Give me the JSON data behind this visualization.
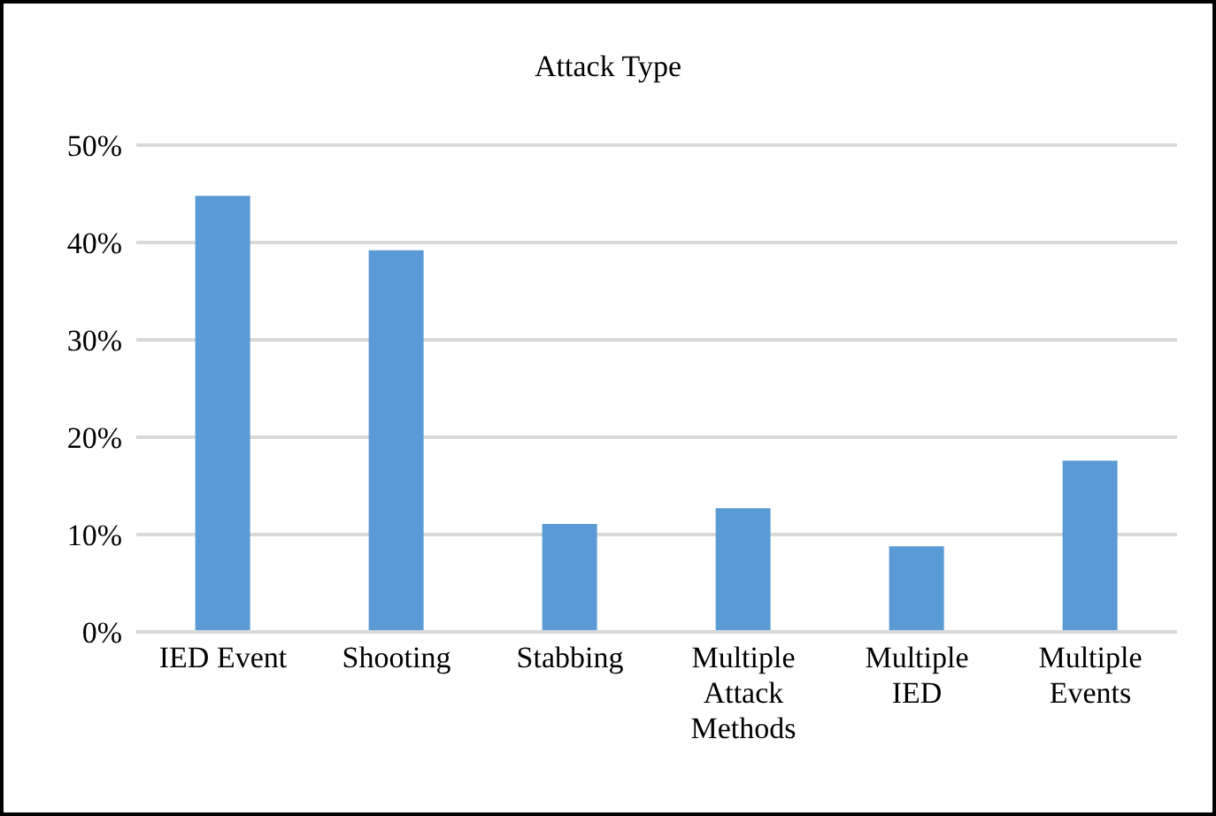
{
  "chart_data": {
    "type": "bar",
    "title": "Attack Type",
    "categories": [
      "IED Event",
      "Shooting",
      "Stabbing",
      "Multiple Attack Methods",
      "Multiple IED",
      "Multiple Events"
    ],
    "values": [
      44.8,
      39.2,
      11.1,
      12.7,
      8.8,
      17.6
    ],
    "color": "#5b9bd5",
    "ylim": [
      0,
      50
    ],
    "yticks": [
      {
        "value": 0,
        "label": "0%"
      },
      {
        "value": 10,
        "label": "10%"
      },
      {
        "value": 20,
        "label": "20%"
      },
      {
        "value": 30,
        "label": "30%"
      },
      {
        "value": 40,
        "label": "40%"
      },
      {
        "value": 50,
        "label": "50%"
      }
    ],
    "grid": "y"
  }
}
